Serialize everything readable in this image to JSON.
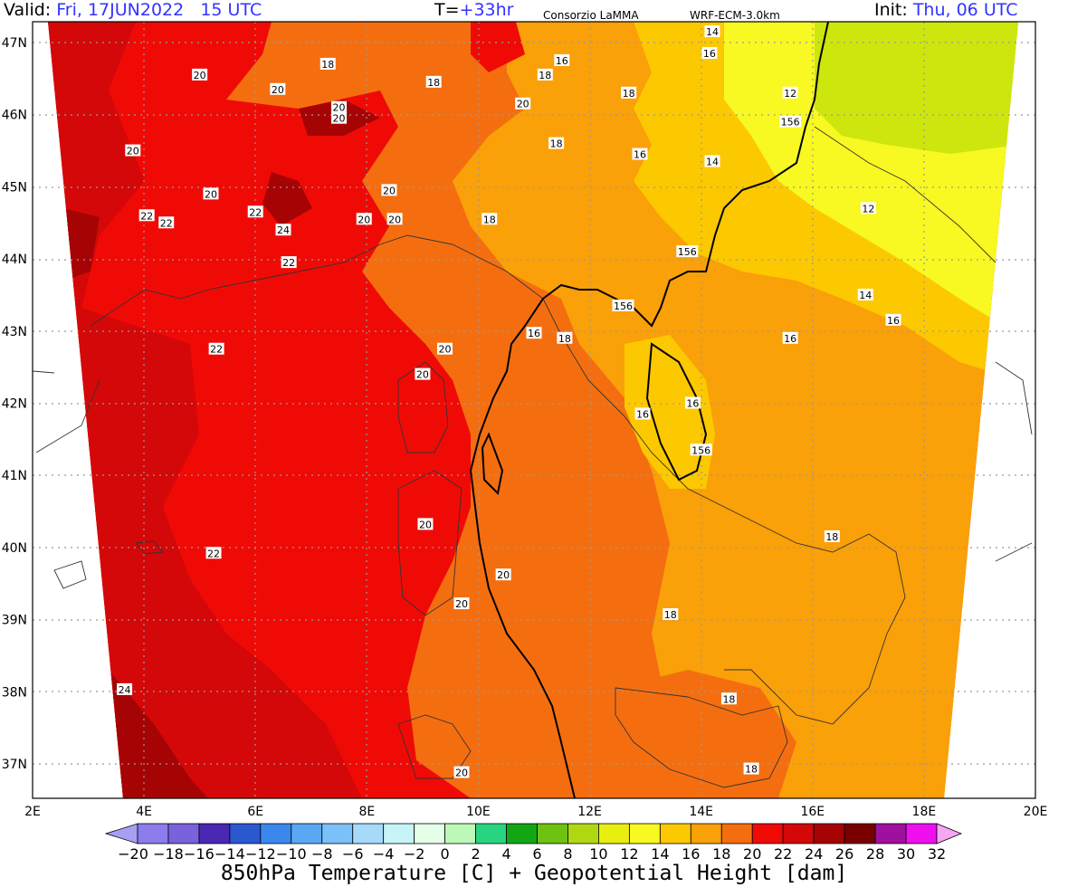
{
  "header": {
    "valid_label": "Valid:",
    "valid_value": "Fri, 17JUN2022   15 UTC",
    "step_label": "T=",
    "step_value": "+33hr",
    "source": "Consorzio LaMMA",
    "model": "WRF-ECM-3.0km",
    "init_label": "Init:",
    "init_value": "Thu, 06 UTC"
  },
  "map": {
    "lat_labels": [
      "47N",
      "46N",
      "45N",
      "44N",
      "43N",
      "42N",
      "41N",
      "40N",
      "39N",
      "38N",
      "37N"
    ],
    "lon_labels": [
      "2E",
      "4E",
      "6E",
      "8E",
      "10E",
      "12E",
      "14E",
      "16E",
      "18E",
      "20E"
    ],
    "temperature_labels": [
      {
        "text": "20",
        "lon": 5.0,
        "lat": 46.55
      },
      {
        "text": "18",
        "lon": 7.3,
        "lat": 46.7
      },
      {
        "text": "20",
        "lon": 6.4,
        "lat": 46.35
      },
      {
        "text": "20",
        "lon": 7.5,
        "lat": 46.1
      },
      {
        "text": "20",
        "lon": 7.5,
        "lat": 45.95
      },
      {
        "text": "18",
        "lon": 9.2,
        "lat": 46.45
      },
      {
        "text": "20",
        "lon": 10.8,
        "lat": 46.15
      },
      {
        "text": "16",
        "lon": 11.5,
        "lat": 46.75
      },
      {
        "text": "18",
        "lon": 11.2,
        "lat": 46.55
      },
      {
        "text": "14",
        "lon": 14.2,
        "lat": 47.15
      },
      {
        "text": "16",
        "lon": 14.15,
        "lat": 46.85
      },
      {
        "text": "18",
        "lon": 12.7,
        "lat": 46.3
      },
      {
        "text": "12",
        "lon": 15.6,
        "lat": 46.3
      },
      {
        "text": "156",
        "lon": 15.6,
        "lat": 45.9
      },
      {
        "text": "20",
        "lon": 3.8,
        "lat": 45.5
      },
      {
        "text": "18",
        "lon": 11.4,
        "lat": 45.6
      },
      {
        "text": "16",
        "lon": 12.9,
        "lat": 45.45
      },
      {
        "text": "14",
        "lon": 14.2,
        "lat": 45.35
      },
      {
        "text": "20",
        "lon": 5.2,
        "lat": 44.9
      },
      {
        "text": "20",
        "lon": 8.4,
        "lat": 44.95
      },
      {
        "text": "22",
        "lon": 4.05,
        "lat": 44.6
      },
      {
        "text": "22",
        "lon": 4.4,
        "lat": 44.5
      },
      {
        "text": "22",
        "lon": 6.0,
        "lat": 44.65
      },
      {
        "text": "20",
        "lon": 7.95,
        "lat": 44.55
      },
      {
        "text": "20",
        "lon": 8.5,
        "lat": 44.55
      },
      {
        "text": "18",
        "lon": 10.2,
        "lat": 44.55
      },
      {
        "text": "24",
        "lon": 6.5,
        "lat": 44.4
      },
      {
        "text": "12",
        "lon": 17.0,
        "lat": 44.7
      },
      {
        "text": "156",
        "lon": 13.75,
        "lat": 44.1
      },
      {
        "text": "22",
        "lon": 6.6,
        "lat": 43.95
      },
      {
        "text": "14",
        "lon": 16.95,
        "lat": 43.5
      },
      {
        "text": "156",
        "lon": 12.6,
        "lat": 43.35
      },
      {
        "text": "16",
        "lon": 17.45,
        "lat": 43.15
      },
      {
        "text": "16",
        "lon": 11.0,
        "lat": 42.97
      },
      {
        "text": "18",
        "lon": 11.55,
        "lat": 42.9
      },
      {
        "text": "16",
        "lon": 15.6,
        "lat": 42.9
      },
      {
        "text": "22",
        "lon": 5.3,
        "lat": 42.75
      },
      {
        "text": "20",
        "lon": 9.4,
        "lat": 42.75
      },
      {
        "text": "20",
        "lon": 9.0,
        "lat": 42.4
      },
      {
        "text": "16",
        "lon": 13.85,
        "lat": 42.0
      },
      {
        "text": "16",
        "lon": 12.95,
        "lat": 41.85
      },
      {
        "text": "156",
        "lon": 14.0,
        "lat": 41.35
      },
      {
        "text": "20",
        "lon": 9.05,
        "lat": 40.32
      },
      {
        "text": "22",
        "lon": 5.25,
        "lat": 39.92
      },
      {
        "text": "18",
        "lon": 16.35,
        "lat": 40.15
      },
      {
        "text": "20",
        "lon": 10.45,
        "lat": 39.62
      },
      {
        "text": "20",
        "lon": 9.7,
        "lat": 39.22
      },
      {
        "text": "18",
        "lon": 13.45,
        "lat": 39.07
      },
      {
        "text": "24",
        "lon": 3.65,
        "lat": 38.03
      },
      {
        "text": "18",
        "lon": 14.5,
        "lat": 37.9
      },
      {
        "text": "20",
        "lon": 9.7,
        "lat": 36.88
      },
      {
        "text": "18",
        "lon": 14.9,
        "lat": 36.93
      }
    ]
  },
  "colorbar": {
    "tick_labels": [
      "−20",
      "−18",
      "−16",
      "−14",
      "−12",
      "−10",
      "−8",
      "−6",
      "−4",
      "−2",
      "0",
      "2",
      "4",
      "6",
      "8",
      "10",
      "12",
      "14",
      "16",
      "18",
      "20",
      "22",
      "24",
      "26",
      "28",
      "30",
      "32"
    ],
    "colors": [
      "#a6a0f4",
      "#8c7cec",
      "#7a62dc",
      "#4a28b4",
      "#2a58d0",
      "#3a88ee",
      "#5aa8f4",
      "#7cc0f8",
      "#a6daf8",
      "#c6f4f8",
      "#e4fee8",
      "#bcf8b8",
      "#28d480",
      "#12a614",
      "#6ec212",
      "#b0d812",
      "#e8ee10",
      "#f8f822",
      "#fcc800",
      "#faa008",
      "#f46e10",
      "#f00a06",
      "#d40808",
      "#a60404",
      "#780000",
      "#a0109e",
      "#ee10ee",
      "#f6a6f4"
    ]
  },
  "title": "850hPa Temperature [C] + Geopotential Height [dam]"
}
